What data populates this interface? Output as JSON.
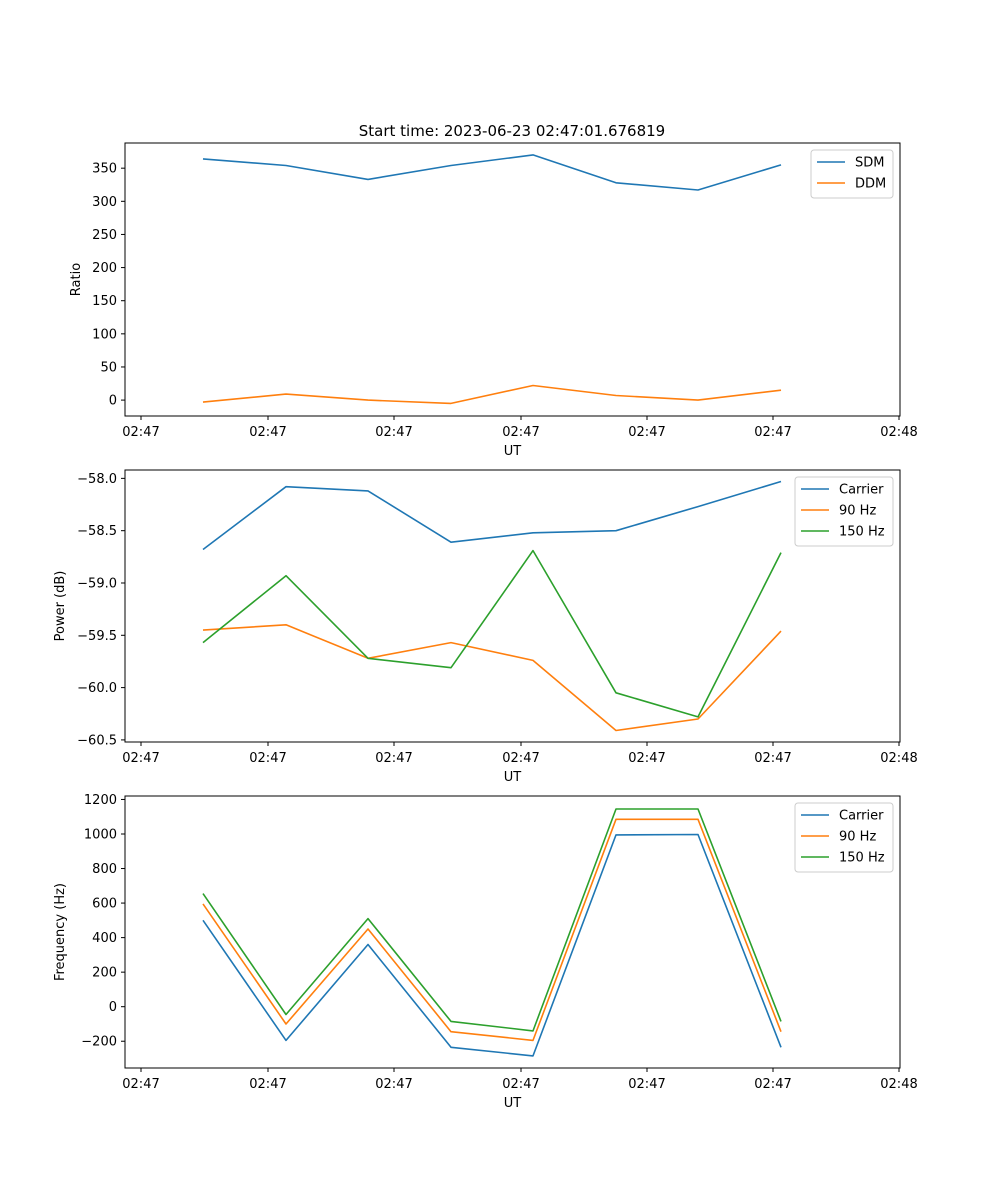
{
  "title": "Start time: 2023-06-23 02:47:01.676819",
  "x_tick_labels": [
    "02:47",
    "02:47",
    "02:47",
    "02:47",
    "02:47",
    "02:47",
    "02:47",
    "02:48"
  ],
  "chart_data": [
    {
      "type": "line",
      "title": "Start time: 2023-06-23 02:47:01.676819",
      "xlabel": "UT",
      "ylabel": "Ratio",
      "x": [
        1,
        2,
        3,
        4,
        5,
        6,
        7,
        8
      ],
      "xlim": [
        0.3,
        9.45
      ],
      "ylim": [
        -24,
        388
      ],
      "y_ticks": [
        0,
        50,
        100,
        150,
        200,
        250,
        300,
        350
      ],
      "y_tick_labels": [
        "0",
        "50",
        "100",
        "150",
        "200",
        "250",
        "300",
        "350"
      ],
      "legend_position": "top-right",
      "series": [
        {
          "name": "SDM",
          "color": "#1f77b4",
          "values": [
            364,
            354,
            333,
            354,
            370,
            328,
            317,
            355
          ]
        },
        {
          "name": "DDM",
          "color": "#ff7f0e",
          "values": [
            -3,
            9,
            0,
            -5,
            22,
            7,
            0,
            15
          ]
        }
      ]
    },
    {
      "type": "line",
      "title": "",
      "xlabel": "UT",
      "ylabel": "Power (dB)",
      "x": [
        1,
        2,
        3,
        4,
        5,
        6,
        7,
        8
      ],
      "xlim": [
        0.3,
        9.45
      ],
      "ylim": [
        -60.52,
        -57.92
      ],
      "y_ticks": [
        -60.5,
        -60.0,
        -59.5,
        -59.0,
        -58.5,
        -58.0
      ],
      "y_tick_labels": [
        "−60.5",
        "−60.0",
        "−59.5",
        "−59.0",
        "−58.5",
        "−58.0"
      ],
      "legend_position": "top-right",
      "series": [
        {
          "name": "Carrier",
          "color": "#1f77b4",
          "values": [
            -58.68,
            -58.08,
            -58.12,
            -58.61,
            -58.52,
            -58.5,
            -58.27,
            -58.03
          ]
        },
        {
          "name": "90 Hz",
          "color": "#ff7f0e",
          "values": [
            -59.45,
            -59.4,
            -59.72,
            -59.57,
            -59.74,
            -60.41,
            -60.3,
            -59.46
          ]
        },
        {
          "name": "150 Hz",
          "color": "#2ca02c",
          "values": [
            -59.57,
            -58.93,
            -59.72,
            -59.81,
            -58.69,
            -60.05,
            -60.28,
            -58.71
          ]
        }
      ]
    },
    {
      "type": "line",
      "title": "",
      "xlabel": "UT",
      "ylabel": "Frequency (Hz)",
      "x": [
        1,
        2,
        3,
        4,
        5,
        6,
        7,
        8
      ],
      "xlim": [
        0.3,
        9.45
      ],
      "ylim": [
        -355,
        1220
      ],
      "y_ticks": [
        -200,
        0,
        200,
        400,
        600,
        800,
        1000,
        1200
      ],
      "y_tick_labels": [
        "−200",
        "0",
        "200",
        "400",
        "600",
        "800",
        "1000",
        "1200"
      ],
      "legend_position": "top-right",
      "series": [
        {
          "name": "Carrier",
          "color": "#1f77b4",
          "values": [
            500,
            -195,
            360,
            -235,
            -285,
            995,
            997,
            -235
          ]
        },
        {
          "name": "90 Hz",
          "color": "#ff7f0e",
          "values": [
            595,
            -100,
            450,
            -145,
            -195,
            1085,
            1085,
            -145
          ]
        },
        {
          "name": "150 Hz",
          "color": "#2ca02c",
          "values": [
            655,
            -45,
            510,
            -85,
            -140,
            1145,
            1145,
            -85
          ]
        }
      ]
    }
  ]
}
